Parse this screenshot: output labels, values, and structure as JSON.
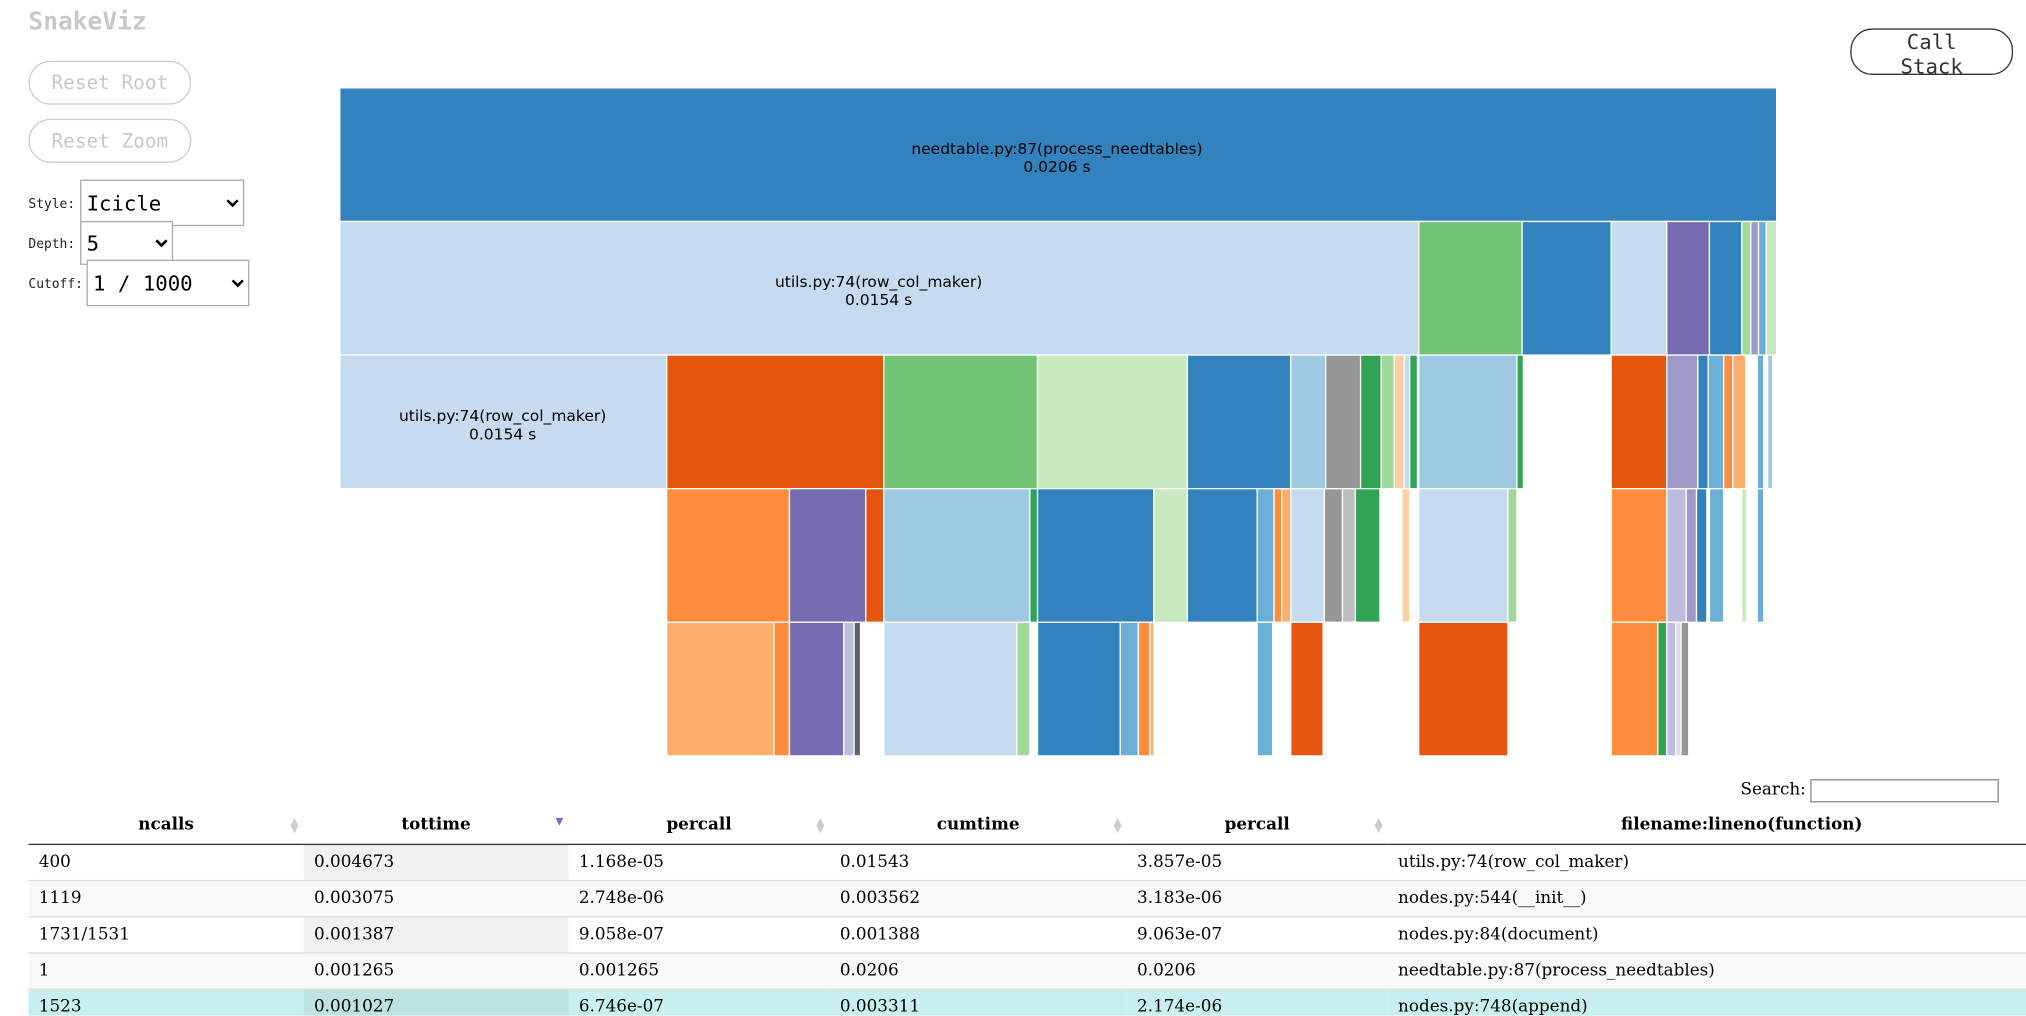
{
  "app": {
    "title": "SnakeViz",
    "buttons": [
      "Reset Root",
      "Reset Zoom",
      "Call Stack"
    ]
  },
  "controls": {
    "style": {
      "label": "Style:",
      "value": "Icicle"
    },
    "depth": {
      "label": "Depth:",
      "value": "5"
    },
    "cutoff": {
      "label": "Cutoff:",
      "value": "1 / 1000"
    }
  },
  "icicle": {
    "nodes": [
      {
        "name": "needtable.py:87(process_needtables)",
        "time": "0.0206 s"
      },
      {
        "name": "utils.py:74(row_col_maker)",
        "time": "0.0154 s"
      },
      {
        "name": "utils.py:74(row_col_maker)",
        "time": "0.0154 s"
      }
    ]
  },
  "search": {
    "label": "Search:"
  },
  "table": {
    "columns": [
      "ncalls",
      "tottime",
      "percall",
      "cumtime",
      "percall",
      "filename:lineno(function)"
    ],
    "rows": [
      [
        "400",
        "0.004673",
        "1.168e-05",
        "0.01543",
        "3.857e-05",
        "utils.py:74(row_col_maker)"
      ],
      [
        "1119",
        "0.003075",
        "2.748e-06",
        "0.003562",
        "3.183e-06",
        "nodes.py:544(__init__)"
      ],
      [
        "1731/1531",
        "0.001387",
        "9.058e-07",
        "0.001388",
        "9.063e-07",
        "nodes.py:84(document)"
      ],
      [
        "1",
        "0.001265",
        "0.001265",
        "0.0206",
        "0.0206",
        "needtable.py:87(process_needtables)"
      ],
      [
        "1523",
        "0.001027",
        "6.746e-07",
        "0.003311",
        "2.174e-06",
        "nodes.py:748(append)"
      ]
    ]
  }
}
